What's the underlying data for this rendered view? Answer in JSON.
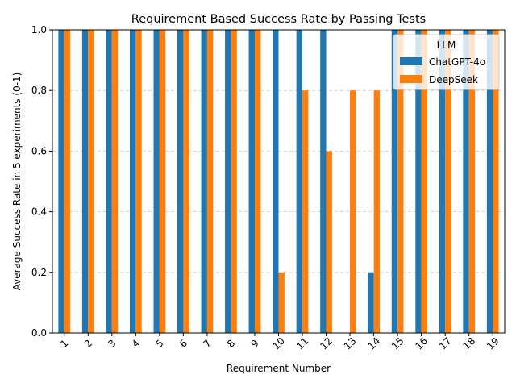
{
  "chart_data": {
    "type": "bar",
    "title": "Requirement Based Success Rate by Passing Tests",
    "xlabel": "Requirement Number",
    "ylabel": "Average Success Rate in 5 experiments (0-1)",
    "categories": [
      "1",
      "2",
      "3",
      "4",
      "5",
      "6",
      "7",
      "8",
      "9",
      "10",
      "11",
      "12",
      "13",
      "14",
      "15",
      "16",
      "17",
      "18",
      "19"
    ],
    "ylim": [
      0,
      1.0
    ],
    "yticks": [
      "0.0",
      "0.2",
      "0.4",
      "0.6",
      "0.8",
      "1.0"
    ],
    "grid": "horizontal dashed",
    "legend": {
      "title": "LLM",
      "placement": "top-right"
    },
    "series": [
      {
        "name": "ChatGPT-4o",
        "color": "#1f77b4",
        "values": [
          1.0,
          1.0,
          1.0,
          1.0,
          1.0,
          1.0,
          1.0,
          1.0,
          1.0,
          1.0,
          1.0,
          1.0,
          0.0,
          0.2,
          1.0,
          1.0,
          1.0,
          1.0,
          1.0
        ]
      },
      {
        "name": "DeepSeek",
        "color": "#ff7f0e",
        "values": [
          1.0,
          1.0,
          1.0,
          1.0,
          1.0,
          1.0,
          1.0,
          1.0,
          1.0,
          0.2,
          0.8,
          0.6,
          0.8,
          0.8,
          1.0,
          1.0,
          1.0,
          1.0,
          1.0
        ]
      }
    ]
  }
}
